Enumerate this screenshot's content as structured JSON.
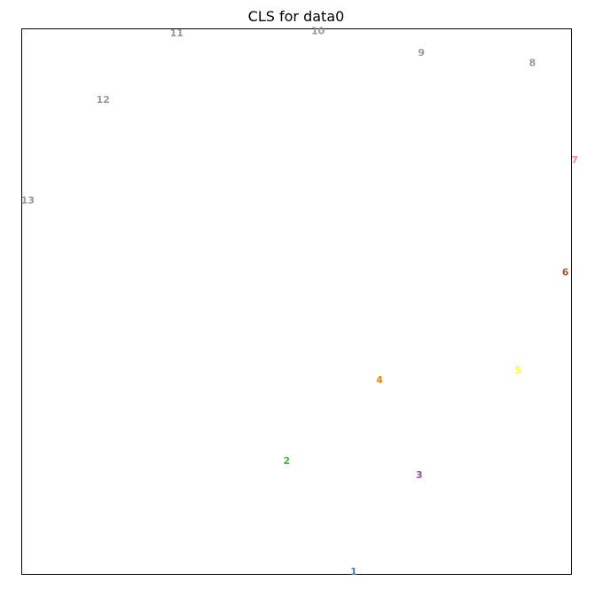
{
  "chart_data": {
    "type": "scatter",
    "title": "CLS for data0",
    "xlabel": "",
    "ylabel": "",
    "grid": false,
    "ticks": false,
    "xlim": [
      0,
      1
    ],
    "ylim": [
      0,
      1
    ],
    "points": [
      {
        "label": "1",
        "x": 0.604,
        "y": 0.005,
        "color": "#377eb8"
      },
      {
        "label": "2",
        "x": 0.482,
        "y": 0.208,
        "color": "#4daf4a"
      },
      {
        "label": "3",
        "x": 0.723,
        "y": 0.182,
        "color": "#984ea3"
      },
      {
        "label": "4",
        "x": 0.651,
        "y": 0.356,
        "color": "#ff7f00"
      },
      {
        "label": "5",
        "x": 0.903,
        "y": 0.374,
        "color": "#ffff33"
      },
      {
        "label": "6",
        "x": 0.989,
        "y": 0.554,
        "color": "#a65628"
      },
      {
        "label": "7",
        "x": 1.006,
        "y": 0.759,
        "color": "#f781bf"
      },
      {
        "label": "8",
        "x": 0.929,
        "y": 0.937,
        "color": "#999999"
      },
      {
        "label": "9",
        "x": 0.727,
        "y": 0.956,
        "color": "#999999"
      },
      {
        "label": "10",
        "x": 0.539,
        "y": 0.996,
        "color": "#999999"
      },
      {
        "label": "11",
        "x": 0.282,
        "y": 0.992,
        "color": "#999999"
      },
      {
        "label": "12",
        "x": 0.148,
        "y": 0.87,
        "color": "#999999"
      },
      {
        "label": "13",
        "x": 0.011,
        "y": 0.685,
        "color": "#999999"
      }
    ]
  }
}
